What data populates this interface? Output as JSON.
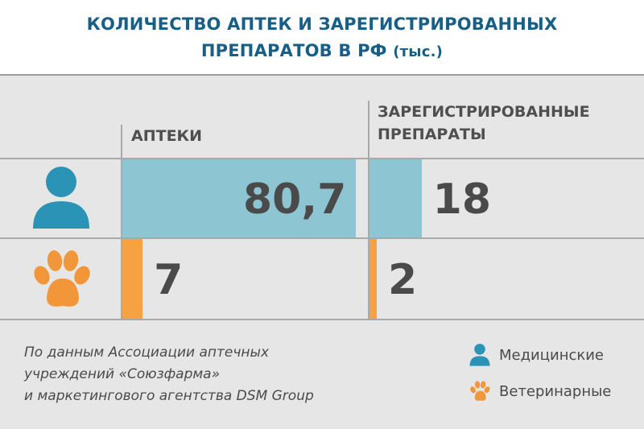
{
  "title": {
    "line1": "КОЛИЧЕСТВО АПТЕК И ЗАРЕГИСТРИРОВАННЫХ",
    "line2_main": "ПРЕПАРАТОВ В РФ",
    "line2_unit": "(тыс.)"
  },
  "columns": {
    "pharmacies": "АПТЕКИ",
    "registered_line1": "ЗАРЕГИСТРИРОВАННЫЕ",
    "registered_line2": "ПРЕПАРАТЫ"
  },
  "colors": {
    "medical": "#8ec5d3",
    "veterinary": "#f6a142",
    "icon_medical": "#2a93b6",
    "icon_veterinary": "#f2963a",
    "title": "#175f86"
  },
  "chart_data": {
    "type": "bar",
    "title": "КОЛИЧЕСТВО АПТЕК И ЗАРЕГИСТРИРОВАННЫХ ПРЕПАРАТОВ В РФ (тыс.)",
    "categories": [
      "АПТЕКИ",
      "ЗАРЕГИСТРИРОВАННЫЕ ПРЕПАРАТЫ"
    ],
    "series": [
      {
        "name": "Медицинские",
        "values": [
          80.7,
          18
        ],
        "labels": [
          "80,7",
          "18"
        ]
      },
      {
        "name": "Ветеринарные",
        "values": [
          7,
          2
        ],
        "labels": [
          "7",
          "2"
        ]
      }
    ]
  },
  "source": {
    "line1": "По данным Ассоциации аптечных",
    "line2": "учреждений «Союзфарма»",
    "line3": "и маркетингового агентства DSM Group"
  },
  "legend": {
    "medical": "Медицинские",
    "veterinary": "Ветеринарные"
  }
}
